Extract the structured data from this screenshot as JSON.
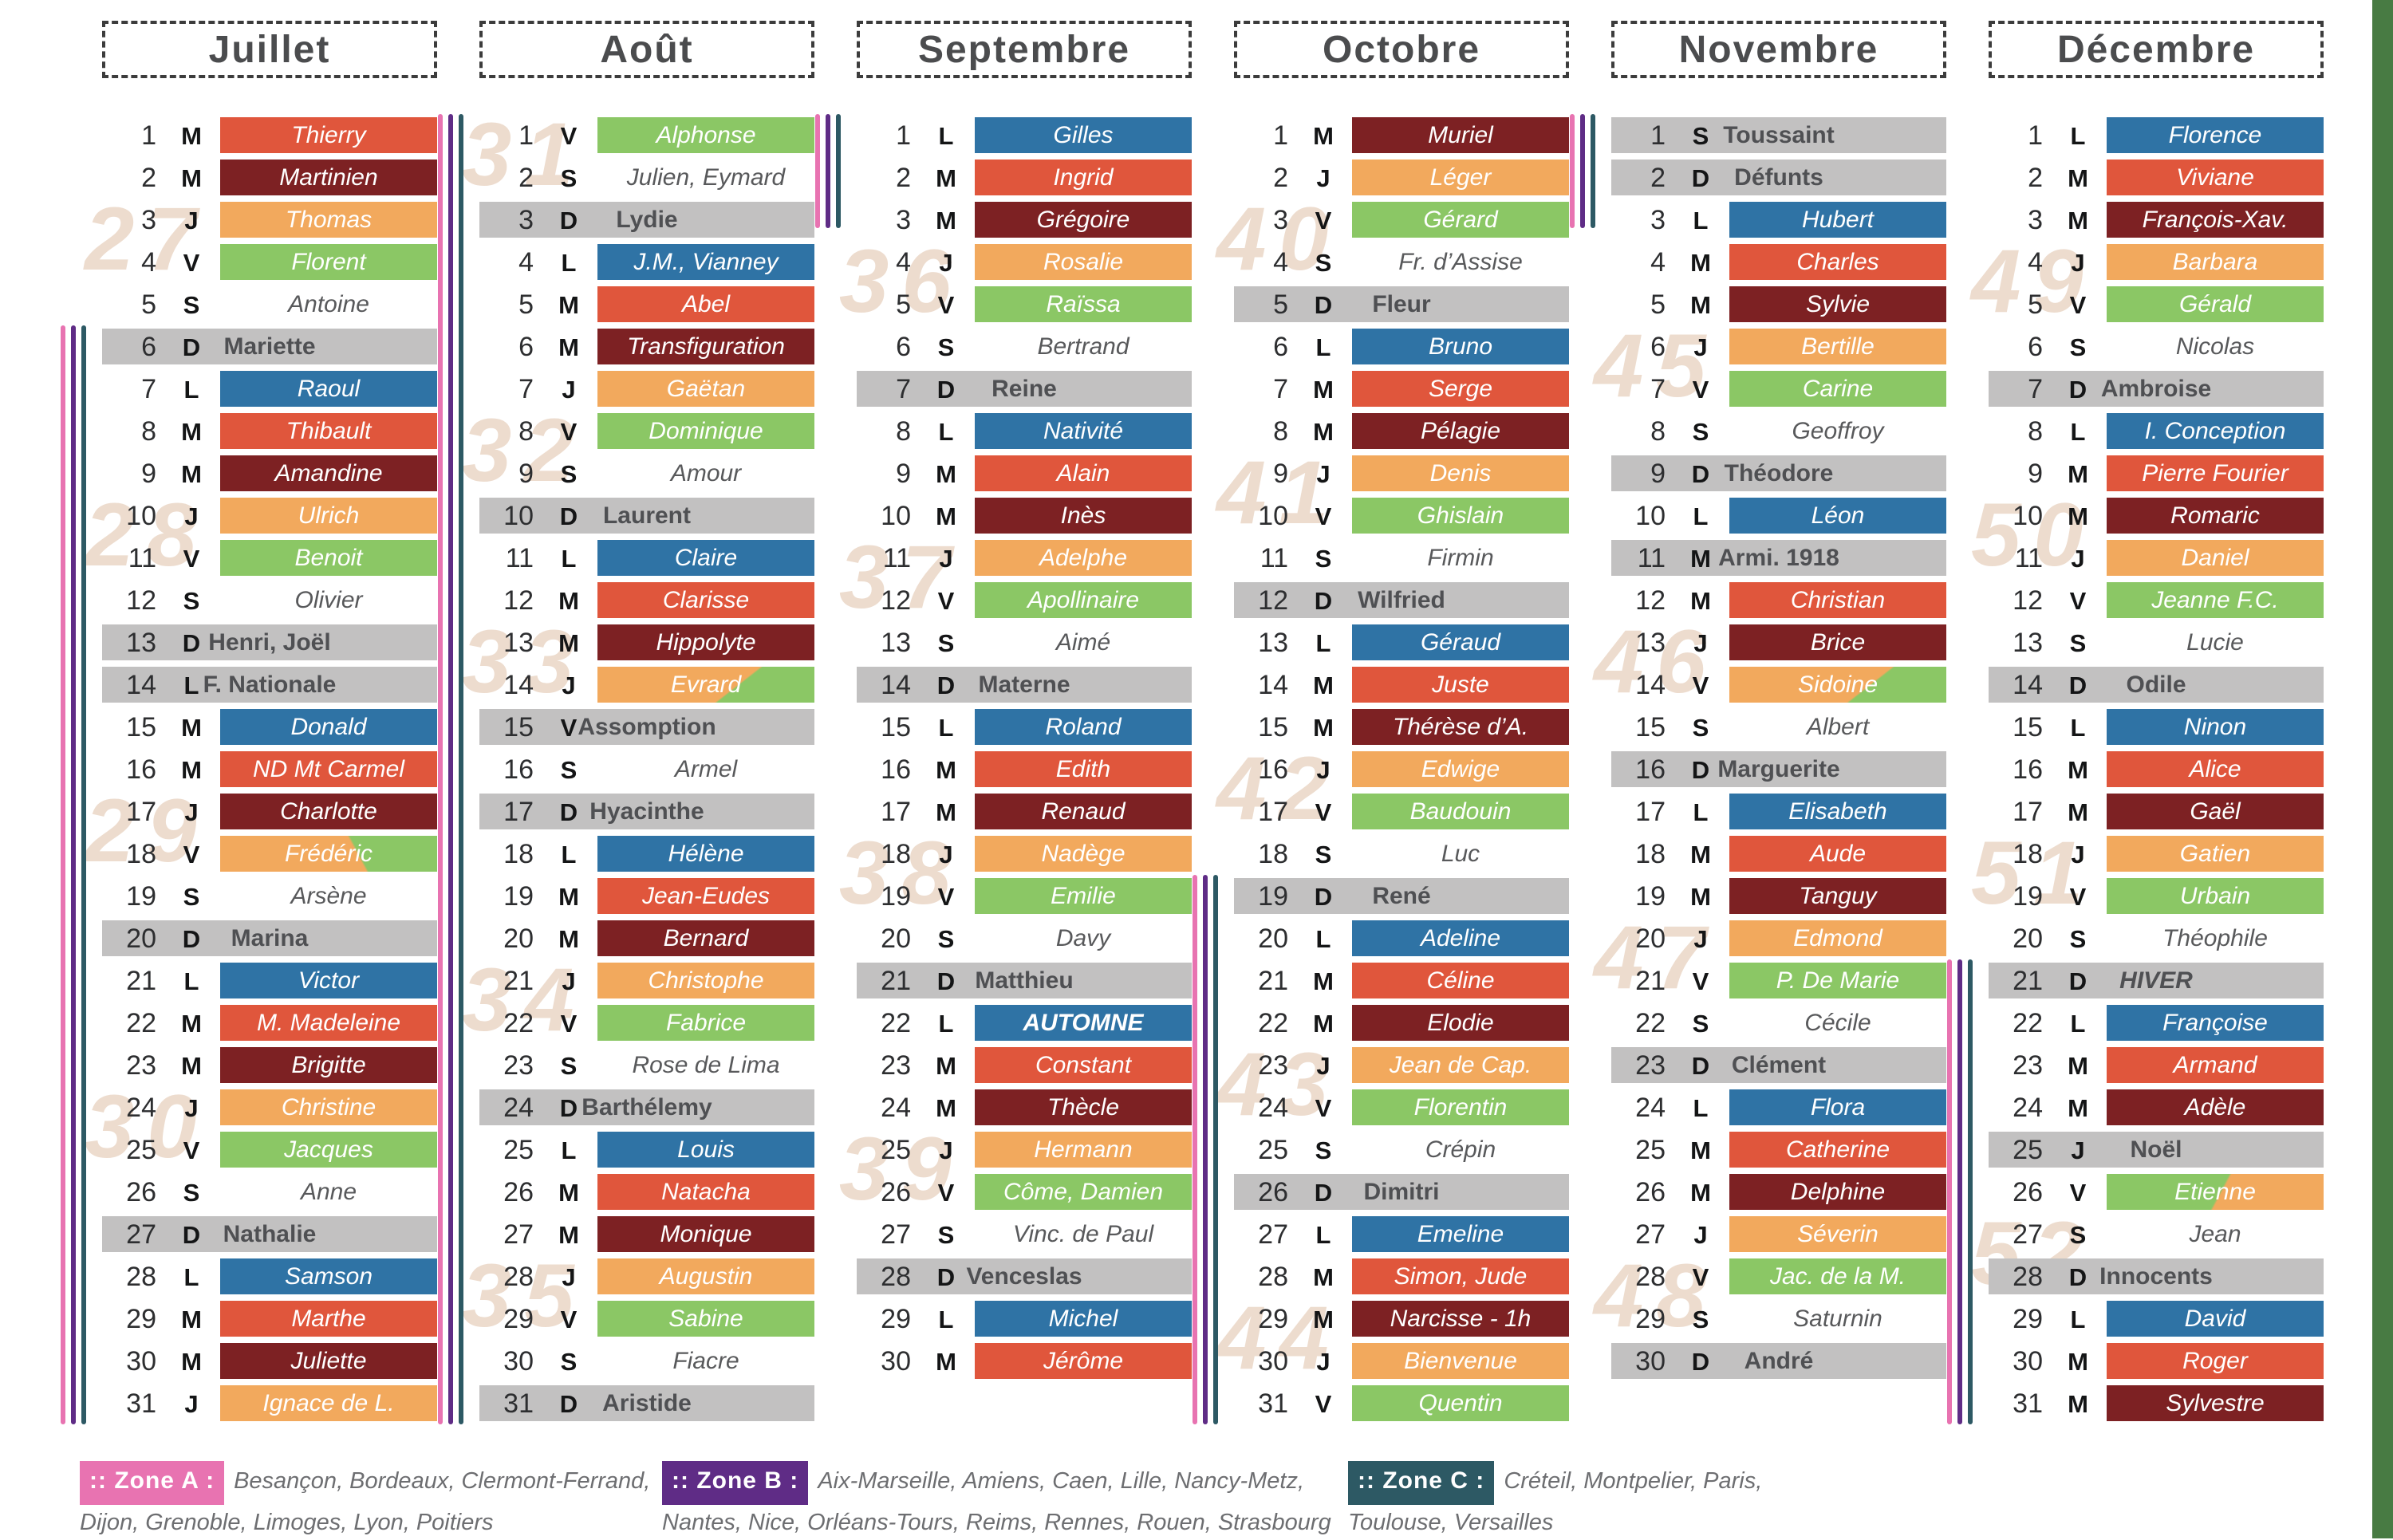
{
  "palette": {
    "blue": "#2F73A5",
    "red": "#E0563C",
    "maroon": "#7D2123",
    "orange": "#F2A95D",
    "green": "#8BC765",
    "gray": "#C2C1C1",
    "zone_a_pink": "#E873B1",
    "zone_b_purple": "#5F2C86",
    "zone_c_teal": "#2D5964",
    "week_number": "#EDDCCE",
    "right_strip_green": "#487B43",
    "title_text": "#4b4c4e",
    "legend_text": "#6d6e71"
  },
  "legend": {
    "zones": [
      {
        "label": ":: Zone A :",
        "color_key": "zone_a_pink",
        "lines": [
          "Besançon, Bordeaux, Clermont-Ferrand,",
          "Dijon, Grenoble, Limoges, Lyon, Poitiers"
        ]
      },
      {
        "label": ":: Zone B :",
        "color_key": "zone_b_purple",
        "lines": [
          "Aix-Marseille, Amiens, Caen, Lille, Nancy-Metz,",
          "Nantes, Nice, Orléans-Tours, Reims, Rennes, Rouen, Strasbourg"
        ]
      },
      {
        "label": ":: Zone C :",
        "color_key": "zone_c_teal",
        "lines": [
          "Créteil, Montpelier, Paris,",
          "Toulouse, Versailles"
        ]
      }
    ]
  },
  "months": [
    {
      "name": "Juillet",
      "weeks": [
        [
          "27",
          3
        ],
        [
          "28",
          10
        ],
        [
          "29",
          17
        ],
        [
          "30",
          24
        ]
      ],
      "vacation": {
        "from": 6,
        "to": 32
      },
      "days": [
        [
          1,
          "M",
          "Thierry",
          "red"
        ],
        [
          2,
          "M",
          "Martinien",
          "maroon"
        ],
        [
          3,
          "J",
          "Thomas",
          "orange"
        ],
        [
          4,
          "V",
          "Florent",
          "green"
        ],
        [
          5,
          "S",
          "Antoine",
          "white"
        ],
        [
          6,
          "D",
          "Mariette",
          "gray"
        ],
        [
          7,
          "L",
          "Raoul",
          "blue"
        ],
        [
          8,
          "M",
          "Thibault",
          "red"
        ],
        [
          9,
          "M",
          "Amandine",
          "maroon"
        ],
        [
          10,
          "J",
          "Ulrich",
          "orange"
        ],
        [
          11,
          "V",
          "Benoit",
          "green"
        ],
        [
          12,
          "S",
          "Olivier",
          "white"
        ],
        [
          13,
          "D",
          "Henri, Joël",
          "gray"
        ],
        [
          14,
          "L",
          "F. Nationale",
          "gray"
        ],
        [
          15,
          "M",
          "Donald",
          "blue"
        ],
        [
          16,
          "M",
          "ND Mt Carmel",
          "red"
        ],
        [
          17,
          "J",
          "Charlotte",
          "maroon"
        ],
        [
          18,
          "V",
          "Frédéric",
          "orange",
          "gtr"
        ],
        [
          19,
          "S",
          "Arsène",
          "white"
        ],
        [
          20,
          "D",
          "Marina",
          "gray"
        ],
        [
          21,
          "L",
          "Victor",
          "blue"
        ],
        [
          22,
          "M",
          "M. Madeleine",
          "red"
        ],
        [
          23,
          "M",
          "Brigitte",
          "maroon"
        ],
        [
          24,
          "J",
          "Christine",
          "orange"
        ],
        [
          25,
          "V",
          "Jacques",
          "green"
        ],
        [
          26,
          "S",
          "Anne",
          "white"
        ],
        [
          27,
          "D",
          "Nathalie",
          "gray"
        ],
        [
          28,
          "L",
          "Samson",
          "blue"
        ],
        [
          29,
          "M",
          "Marthe",
          "red"
        ],
        [
          30,
          "M",
          "Juliette",
          "maroon"
        ],
        [
          31,
          "J",
          "Ignace de L.",
          "orange"
        ]
      ]
    },
    {
      "name": "Août",
      "weeks": [
        [
          "31",
          1
        ],
        [
          "32",
          8
        ],
        [
          "33",
          13
        ],
        [
          "34",
          21
        ],
        [
          "35",
          28
        ]
      ],
      "vacation": {
        "from": 1,
        "to": 32
      },
      "days": [
        [
          1,
          "V",
          "Alphonse",
          "green"
        ],
        [
          2,
          "S",
          "Julien, Eymard",
          "white"
        ],
        [
          3,
          "D",
          "Lydie",
          "gray"
        ],
        [
          4,
          "L",
          "J.M., Vianney",
          "blue"
        ],
        [
          5,
          "M",
          "Abel",
          "red"
        ],
        [
          6,
          "M",
          "Transfiguration",
          "maroon"
        ],
        [
          7,
          "J",
          "Gaëtan",
          "orange"
        ],
        [
          8,
          "V",
          "Dominique",
          "green"
        ],
        [
          9,
          "S",
          "Amour",
          "white"
        ],
        [
          10,
          "D",
          "Laurent",
          "gray"
        ],
        [
          11,
          "L",
          "Claire",
          "blue"
        ],
        [
          12,
          "M",
          "Clarisse",
          "red"
        ],
        [
          13,
          "M",
          "Hippolyte",
          "maroon"
        ],
        [
          14,
          "J",
          "Evrard",
          "orange",
          "gbr"
        ],
        [
          15,
          "V",
          "Assomption",
          "gray"
        ],
        [
          16,
          "S",
          "Armel",
          "white"
        ],
        [
          17,
          "D",
          "Hyacinthe",
          "gray"
        ],
        [
          18,
          "L",
          "Hélène",
          "blue"
        ],
        [
          19,
          "M",
          "Jean-Eudes",
          "red"
        ],
        [
          20,
          "M",
          "Bernard",
          "maroon"
        ],
        [
          21,
          "J",
          "Christophe",
          "orange"
        ],
        [
          22,
          "V",
          "Fabrice",
          "green"
        ],
        [
          23,
          "S",
          "Rose de Lima",
          "white"
        ],
        [
          24,
          "D",
          "Barthélemy",
          "gray"
        ],
        [
          25,
          "L",
          "Louis",
          "blue"
        ],
        [
          26,
          "M",
          "Natacha",
          "red"
        ],
        [
          27,
          "M",
          "Monique",
          "maroon"
        ],
        [
          28,
          "J",
          "Augustin",
          "orange"
        ],
        [
          29,
          "V",
          "Sabine",
          "green"
        ],
        [
          30,
          "S",
          "Fiacre",
          "white"
        ],
        [
          31,
          "D",
          "Aristide",
          "gray"
        ]
      ]
    },
    {
      "name": "Septembre",
      "weeks": [
        [
          "36",
          4
        ],
        [
          "37",
          11
        ],
        [
          "38",
          18
        ],
        [
          "39",
          25
        ]
      ],
      "vacation": {
        "from": 1,
        "to": 3.7
      },
      "days": [
        [
          1,
          "L",
          "Gilles",
          "blue"
        ],
        [
          2,
          "M",
          "Ingrid",
          "red"
        ],
        [
          3,
          "M",
          "Grégoire",
          "maroon"
        ],
        [
          4,
          "J",
          "Rosalie",
          "orange"
        ],
        [
          5,
          "V",
          "Raïssa",
          "green"
        ],
        [
          6,
          "S",
          "Bertrand",
          "white"
        ],
        [
          7,
          "D",
          "Reine",
          "gray"
        ],
        [
          8,
          "L",
          "Nativité",
          "blue"
        ],
        [
          9,
          "M",
          "Alain",
          "red"
        ],
        [
          10,
          "M",
          "Inès",
          "maroon"
        ],
        [
          11,
          "J",
          "Adelphe",
          "orange"
        ],
        [
          12,
          "V",
          "Apollinaire",
          "green"
        ],
        [
          13,
          "S",
          "Aimé",
          "white"
        ],
        [
          14,
          "D",
          "Materne",
          "gray"
        ],
        [
          15,
          "L",
          "Roland",
          "blue"
        ],
        [
          16,
          "M",
          "Edith",
          "red"
        ],
        [
          17,
          "M",
          "Renaud",
          "maroon"
        ],
        [
          18,
          "J",
          "Nadège",
          "orange"
        ],
        [
          19,
          "V",
          "Emilie",
          "green"
        ],
        [
          20,
          "S",
          "Davy",
          "white"
        ],
        [
          21,
          "D",
          "Matthieu",
          "gray"
        ],
        [
          22,
          "L",
          "AUTOMNE",
          "blue",
          "special"
        ],
        [
          23,
          "M",
          "Constant",
          "red"
        ],
        [
          24,
          "M",
          "Thècle",
          "maroon"
        ],
        [
          25,
          "J",
          "Hermann",
          "orange"
        ],
        [
          26,
          "V",
          "Côme, Damien",
          "green"
        ],
        [
          27,
          "S",
          "Vinc. de Paul",
          "white"
        ],
        [
          28,
          "D",
          "Venceslas",
          "gray"
        ],
        [
          29,
          "L",
          "Michel",
          "blue"
        ],
        [
          30,
          "M",
          "Jérôme",
          "red"
        ]
      ]
    },
    {
      "name": "Octobre",
      "weeks": [
        [
          "40",
          3
        ],
        [
          "41",
          9
        ],
        [
          "42",
          16
        ],
        [
          "43",
          23
        ],
        [
          "44",
          29
        ]
      ],
      "vacation": {
        "from": 19,
        "to": 32
      },
      "days": [
        [
          1,
          "M",
          "Muriel",
          "maroon"
        ],
        [
          2,
          "J",
          "Léger",
          "orange"
        ],
        [
          3,
          "V",
          "Gérard",
          "green"
        ],
        [
          4,
          "S",
          "Fr. d’Assise",
          "white"
        ],
        [
          5,
          "D",
          "Fleur",
          "gray"
        ],
        [
          6,
          "L",
          "Bruno",
          "blue"
        ],
        [
          7,
          "M",
          "Serge",
          "red"
        ],
        [
          8,
          "M",
          "Pélagie",
          "maroon"
        ],
        [
          9,
          "J",
          "Denis",
          "orange"
        ],
        [
          10,
          "V",
          "Ghislain",
          "green"
        ],
        [
          11,
          "S",
          "Firmin",
          "white"
        ],
        [
          12,
          "D",
          "Wilfried",
          "gray"
        ],
        [
          13,
          "L",
          "Géraud",
          "blue"
        ],
        [
          14,
          "M",
          "Juste",
          "red"
        ],
        [
          15,
          "M",
          "Thérèse d’A.",
          "maroon"
        ],
        [
          16,
          "J",
          "Edwige",
          "orange"
        ],
        [
          17,
          "V",
          "Baudouin",
          "green"
        ],
        [
          18,
          "S",
          "Luc",
          "white"
        ],
        [
          19,
          "D",
          "René",
          "gray"
        ],
        [
          20,
          "L",
          "Adeline",
          "blue"
        ],
        [
          21,
          "M",
          "Céline",
          "red"
        ],
        [
          22,
          "M",
          "Elodie",
          "maroon"
        ],
        [
          23,
          "J",
          "Jean de Cap.",
          "orange"
        ],
        [
          24,
          "V",
          "Florentin",
          "green"
        ],
        [
          25,
          "S",
          "Crépin",
          "white"
        ],
        [
          26,
          "D",
          "Dimitri",
          "gray"
        ],
        [
          27,
          "L",
          "Emeline",
          "blue"
        ],
        [
          28,
          "M",
          "Simon, Jude",
          "red"
        ],
        [
          29,
          "M",
          "Narcisse - 1h",
          "maroon"
        ],
        [
          30,
          "J",
          "Bienvenue",
          "orange"
        ],
        [
          31,
          "V",
          "Quentin",
          "green"
        ]
      ]
    },
    {
      "name": "Novembre",
      "weeks": [
        [
          "45",
          6
        ],
        [
          "46",
          13
        ],
        [
          "47",
          20
        ],
        [
          "48",
          28
        ]
      ],
      "vacation": {
        "from": 1,
        "to": 3.7
      },
      "days": [
        [
          1,
          "S",
          "Toussaint",
          "gray"
        ],
        [
          2,
          "D",
          "Défunts",
          "gray"
        ],
        [
          3,
          "L",
          "Hubert",
          "blue"
        ],
        [
          4,
          "M",
          "Charles",
          "red"
        ],
        [
          5,
          "M",
          "Sylvie",
          "maroon"
        ],
        [
          6,
          "J",
          "Bertille",
          "orange"
        ],
        [
          7,
          "V",
          "Carine",
          "green"
        ],
        [
          8,
          "S",
          "Geoffroy",
          "white"
        ],
        [
          9,
          "D",
          "Théodore",
          "gray"
        ],
        [
          10,
          "L",
          "Léon",
          "blue"
        ],
        [
          11,
          "M",
          "Armi. 1918",
          "gray"
        ],
        [
          12,
          "M",
          "Christian",
          "red"
        ],
        [
          13,
          "J",
          "Brice",
          "maroon"
        ],
        [
          14,
          "V",
          "Sidoine",
          "orange",
          "gbr"
        ],
        [
          15,
          "S",
          "Albert",
          "white"
        ],
        [
          16,
          "D",
          "Marguerite",
          "gray"
        ],
        [
          17,
          "L",
          "Elisabeth",
          "blue"
        ],
        [
          18,
          "M",
          "Aude",
          "red"
        ],
        [
          19,
          "M",
          "Tanguy",
          "maroon"
        ],
        [
          20,
          "J",
          "Edmond",
          "orange"
        ],
        [
          21,
          "V",
          "P. De Marie",
          "green"
        ],
        [
          22,
          "S",
          "Cécile",
          "white"
        ],
        [
          23,
          "D",
          "Clément",
          "gray"
        ],
        [
          24,
          "L",
          "Flora",
          "blue"
        ],
        [
          25,
          "M",
          "Catherine",
          "red"
        ],
        [
          26,
          "M",
          "Delphine",
          "maroon"
        ],
        [
          27,
          "J",
          "Séverin",
          "orange"
        ],
        [
          28,
          "V",
          "Jac. de la M.",
          "green"
        ],
        [
          29,
          "S",
          "Saturnin",
          "white"
        ],
        [
          30,
          "D",
          "André",
          "gray"
        ]
      ]
    },
    {
      "name": "Décembre",
      "weeks": [
        [
          "49",
          4
        ],
        [
          "50",
          10
        ],
        [
          "51",
          18
        ],
        [
          "52",
          27
        ]
      ],
      "vacation": {
        "from": 21,
        "to": 32
      },
      "days": [
        [
          1,
          "L",
          "Florence",
          "blue"
        ],
        [
          2,
          "M",
          "Viviane",
          "red"
        ],
        [
          3,
          "M",
          "François-Xav.",
          "maroon"
        ],
        [
          4,
          "J",
          "Barbara",
          "orange"
        ],
        [
          5,
          "V",
          "Gérald",
          "green"
        ],
        [
          6,
          "S",
          "Nicolas",
          "white"
        ],
        [
          7,
          "D",
          "Ambroise",
          "gray"
        ],
        [
          8,
          "L",
          "I. Conception",
          "blue"
        ],
        [
          9,
          "M",
          "Pierre Fourier",
          "red"
        ],
        [
          10,
          "M",
          "Romaric",
          "maroon"
        ],
        [
          11,
          "J",
          "Daniel",
          "orange"
        ],
        [
          12,
          "V",
          "Jeanne F.C.",
          "green"
        ],
        [
          13,
          "S",
          "Lucie",
          "white"
        ],
        [
          14,
          "D",
          "Odile",
          "gray"
        ],
        [
          15,
          "L",
          "Ninon",
          "blue"
        ],
        [
          16,
          "M",
          "Alice",
          "red"
        ],
        [
          17,
          "M",
          "Gaël",
          "maroon"
        ],
        [
          18,
          "J",
          "Gatien",
          "orange"
        ],
        [
          19,
          "V",
          "Urbain",
          "green"
        ],
        [
          20,
          "S",
          "Théophile",
          "white"
        ],
        [
          21,
          "D",
          "HIVER",
          "gray",
          "special"
        ],
        [
          22,
          "L",
          "Françoise",
          "blue"
        ],
        [
          23,
          "M",
          "Armand",
          "red"
        ],
        [
          24,
          "M",
          "Adèle",
          "maroon"
        ],
        [
          25,
          "J",
          "Noël",
          "gray"
        ],
        [
          26,
          "V",
          "Etienne",
          "green",
          "obr"
        ],
        [
          27,
          "S",
          "Jean",
          "white"
        ],
        [
          28,
          "D",
          "Innocents",
          "gray"
        ],
        [
          29,
          "L",
          "David",
          "blue"
        ],
        [
          30,
          "M",
          "Roger",
          "red"
        ],
        [
          31,
          "M",
          "Sylvestre",
          "maroon"
        ]
      ]
    }
  ]
}
